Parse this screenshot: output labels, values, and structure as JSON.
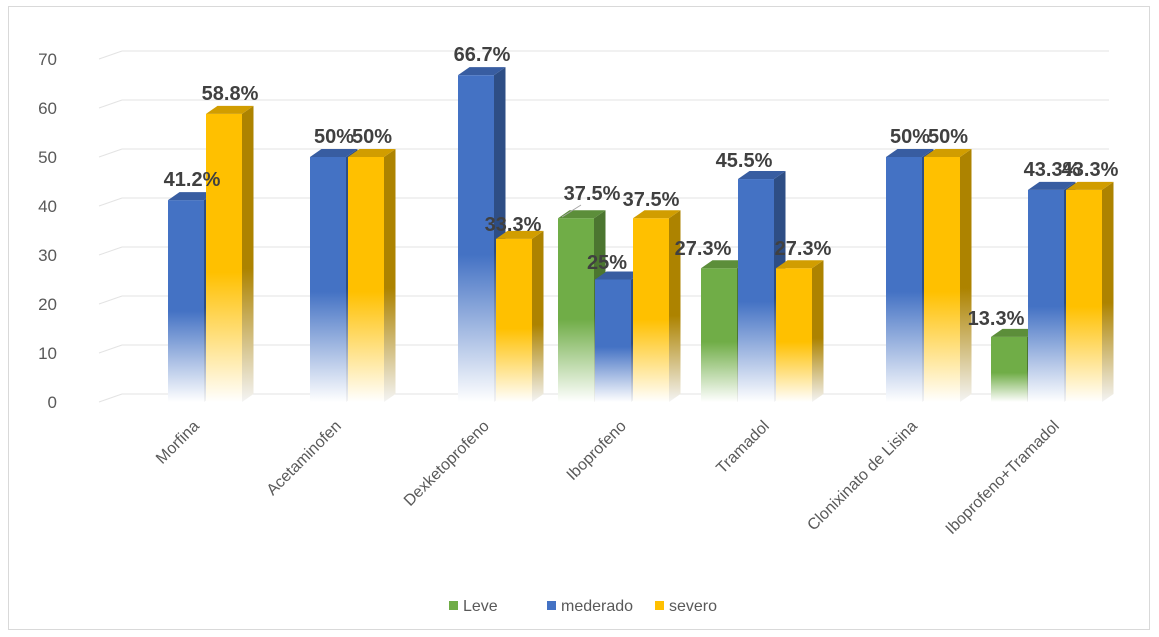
{
  "chart_data": {
    "type": "bar",
    "style": "3d-clustered-column",
    "categories": [
      "Morfina",
      "Acetaminofen",
      "Dexketoprofeno",
      "Iboprofeno",
      "Tramadol",
      "Clonixinato de Lisina",
      "Iboprofeno+Tramadol"
    ],
    "series": [
      {
        "name": "Leve",
        "color": "#70ad47",
        "values": [
          null,
          null,
          null,
          37.5,
          27.3,
          null,
          13.3
        ],
        "labels": [
          null,
          null,
          null,
          "37.5%",
          "27.3%",
          null,
          "13.3%"
        ]
      },
      {
        "name": "mederado",
        "color": "#4472c4",
        "values": [
          41.2,
          50,
          66.7,
          25,
          45.5,
          50,
          43.3
        ],
        "labels": [
          "41.2%",
          "50%",
          "66.7%",
          "25%",
          "45.5%",
          "50%",
          "43.3%"
        ]
      },
      {
        "name": "severo",
        "color": "#ffc000",
        "values": [
          58.8,
          50,
          33.3,
          37.5,
          27.3,
          50,
          43.3
        ],
        "labels": [
          "58.8%",
          "50%",
          "33.3%",
          "37.5%",
          "27.3%",
          "50%",
          "43.3%"
        ]
      }
    ],
    "yticks": [
      "0",
      "10",
      "20",
      "30",
      "40",
      "50",
      "60",
      "70"
    ],
    "ylim": [
      0,
      70
    ],
    "grid": true,
    "legend": "bottom",
    "title": "",
    "xlabel": "",
    "ylabel": ""
  }
}
